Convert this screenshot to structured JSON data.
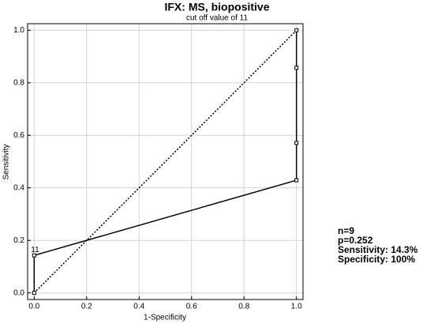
{
  "chart_data": {
    "type": "roc",
    "title": "IFX: MS, biopositive",
    "subtitle": "cut off value of 11",
    "x_label": "1-Specificity",
    "y_label": "Sensitivity",
    "series": [
      {
        "color": "#000000",
        "x": [
          0,
          0,
          1,
          1,
          1,
          1
        ],
        "values": [
          0,
          0.143,
          0.429,
          0.571,
          0.857,
          1
        ]
      }
    ],
    "diagonal": {
      "x": [
        0,
        1
      ],
      "values": [
        0,
        1
      ],
      "color": "#000000",
      "style": "dotted"
    },
    "annotations": [
      {
        "text": "11",
        "x": 0,
        "y": 0.143
      }
    ],
    "stats": [
      "n=9",
      "p=0.252",
      "Sensitivity: 14.3%",
      "Specificity: 100%"
    ],
    "xlim": [
      -0.025,
      1.025
    ],
    "ylim": [
      -0.025,
      1.025
    ],
    "xticks": [
      {
        "value": 0,
        "label": "0.0"
      },
      0.2,
      0.4,
      0.6,
      0.8,
      {
        "value": 1,
        "label": "1.0"
      }
    ],
    "yticks": [
      {
        "value": 0,
        "label": "0.0"
      },
      0.2,
      0.4,
      0.6,
      0.8,
      {
        "value": 1,
        "label": "1.0"
      }
    ],
    "grid": true
  }
}
